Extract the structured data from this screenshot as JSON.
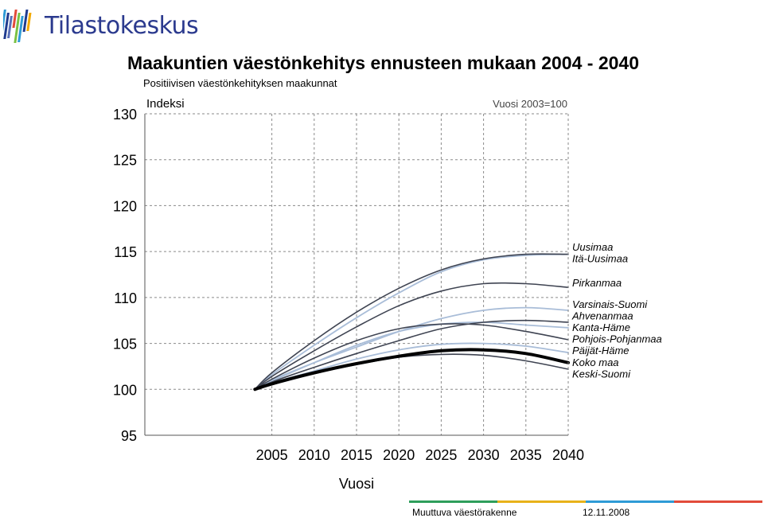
{
  "header": {
    "logo_text": "Tilastokeskus"
  },
  "colors": {
    "logo_bars": [
      "#2e9bd6",
      "#1f3b8f",
      "#5a6fb8",
      "#e24b3a",
      "#7ac143",
      "#2e9bd6",
      "#1f3b8f",
      "#f2a900"
    ],
    "footer_bar": [
      "#2e9e5b",
      "#e8b21a",
      "#2e9bd6",
      "#e24b3a"
    ],
    "dark_series": "#3f4452",
    "light_series": "#a9bdd8",
    "total_series": "#000000",
    "grid": "#8a8a8a"
  },
  "footer": {
    "left": "Muuttuva väestörakenne",
    "right": "12.11.2008"
  },
  "chart_data": {
    "type": "line",
    "title": "Maakuntien väestönkehitys ennusteen mukaan 2004 - 2040",
    "subtitle": "Positiivisen väestönkehityksen maakunnat",
    "ylabel": "Indeksi",
    "xlabel": "Vuosi",
    "note": "Vuosi 2003=100",
    "xlim": [
      1990,
      2040
    ],
    "ylim": [
      95,
      130
    ],
    "xticks": [
      2005,
      2010,
      2015,
      2020,
      2025,
      2030,
      2035,
      2040
    ],
    "yticks": [
      95,
      100,
      105,
      110,
      115,
      120,
      125,
      130
    ],
    "grid": true,
    "legend": "right, at line ends",
    "x": [
      2003,
      2005,
      2010,
      2015,
      2020,
      2025,
      2030,
      2035,
      2040
    ],
    "series": [
      {
        "name": "Uusimaa",
        "style": "dark",
        "values": [
          100,
          101.8,
          105.3,
          108.4,
          111.0,
          113.0,
          114.2,
          114.7,
          114.7
        ]
      },
      {
        "name": "Itä-Uusimaa",
        "style": "light",
        "values": [
          100,
          101.6,
          104.8,
          107.8,
          110.5,
          112.8,
          114.1,
          114.6,
          114.7
        ]
      },
      {
        "name": "Pirkanmaa",
        "style": "dark",
        "values": [
          100,
          101.4,
          104.2,
          106.8,
          109.1,
          110.7,
          111.5,
          111.5,
          111.1
        ]
      },
      {
        "name": "Varsinais-Suomi",
        "style": "light",
        "values": [
          100,
          101.0,
          102.9,
          104.6,
          106.3,
          107.7,
          108.6,
          108.9,
          108.6
        ]
      },
      {
        "name": "Ahvenanmaa",
        "style": "dark",
        "values": [
          100,
          100.8,
          102.4,
          103.9,
          105.3,
          106.6,
          107.3,
          107.5,
          107.3
        ]
      },
      {
        "name": "Kanta-Häme",
        "style": "light",
        "values": [
          100,
          100.9,
          102.9,
          104.8,
          106.3,
          107.1,
          107.3,
          107.0,
          106.7
        ]
      },
      {
        "name": "Pohjois-Pohjanmaa",
        "style": "dark",
        "values": [
          100,
          101.1,
          103.4,
          105.3,
          106.6,
          107.1,
          107.0,
          106.3,
          105.4
        ]
      },
      {
        "name": "Päijät-Häme",
        "style": "light",
        "values": [
          100,
          100.7,
          102.0,
          103.3,
          104.3,
          104.9,
          105.0,
          104.7,
          104.0
        ]
      },
      {
        "name": "Koko maa",
        "style": "total",
        "values": [
          100,
          100.6,
          101.8,
          102.8,
          103.6,
          104.2,
          104.3,
          103.9,
          102.9
        ]
      },
      {
        "name": "Keski-Suomi",
        "style": "dark",
        "values": [
          100,
          100.5,
          101.7,
          102.7,
          103.5,
          103.8,
          103.7,
          103.1,
          102.2
        ]
      }
    ]
  }
}
